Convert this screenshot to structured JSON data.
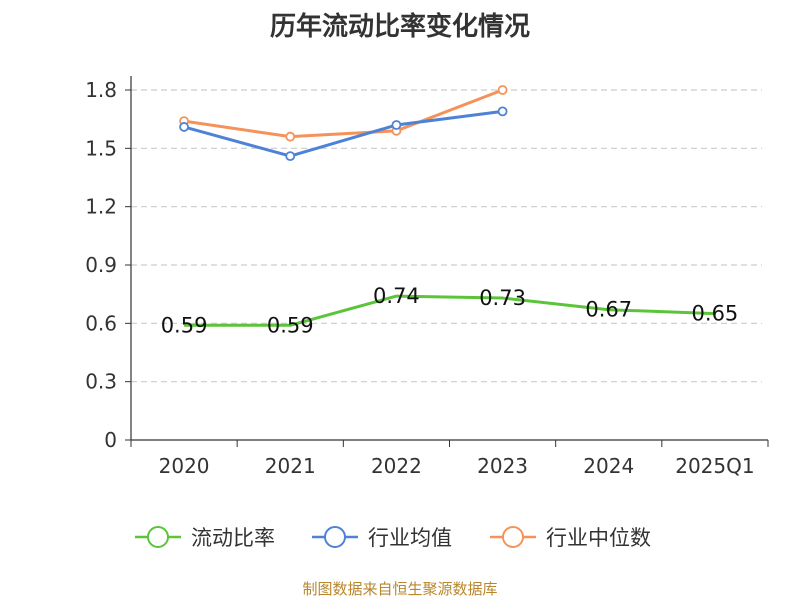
{
  "page": {
    "title": "历年流动比率变化情况",
    "source": "制图数据来自恒生聚源数据库"
  },
  "chart_data": {
    "type": "line",
    "title": "历年流动比率变化情况",
    "categories": [
      "2020",
      "2021",
      "2022",
      "2023",
      "2024",
      "2025Q1"
    ],
    "ylim": [
      0,
      1.8
    ],
    "yticks": [
      0,
      0.3,
      0.6,
      0.9,
      1.2,
      1.5,
      1.8
    ],
    "ytick_labels": [
      "0",
      "0.3",
      "0.6",
      "0.9",
      "1.2",
      "1.5",
      "1.8"
    ],
    "grid": true,
    "legend": "bottom",
    "series": [
      {
        "name": "流动比率",
        "color": "#5cc43a",
        "values": [
          0.59,
          0.59,
          0.74,
          0.73,
          0.67,
          0.65
        ],
        "labels": [
          "0.59",
          "0.59",
          "0.74",
          "0.73",
          "0.67",
          "0.65"
        ],
        "show_labels": true
      },
      {
        "name": "行业均值",
        "color": "#4d82d6",
        "values": [
          1.61,
          1.46,
          1.62,
          1.69,
          null,
          null
        ],
        "show_labels": false
      },
      {
        "name": "行业中位数",
        "color": "#f5925a",
        "values": [
          1.64,
          1.56,
          1.59,
          1.8,
          null,
          null
        ],
        "show_labels": false
      }
    ]
  }
}
